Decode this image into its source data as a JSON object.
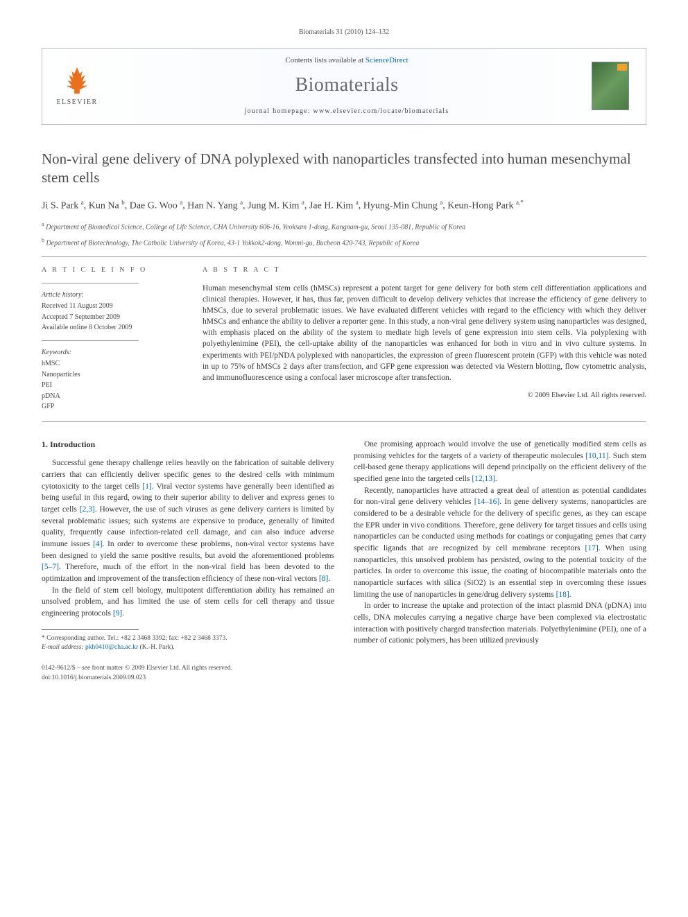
{
  "running_header": "Biomaterials 31 (2010) 124–132",
  "masthead": {
    "contents_prefix": "Contents lists available at ",
    "sciencedirect": "ScienceDirect",
    "journal": "Biomaterials",
    "homepage_prefix": "journal homepage: ",
    "homepage_url": "www.elsevier.com/locate/biomaterials",
    "elsevier_label": "ELSEVIER",
    "cover_label": "Biomaterials"
  },
  "title": "Non-viral gene delivery of DNA polyplexed with nanoparticles transfected into human mesenchymal stem cells",
  "authors_html": "Ji S. Park <sup>a</sup>, Kun Na <sup>b</sup>, Dae G. Woo <sup>a</sup>, Han N. Yang <sup>a</sup>, Jung M. Kim <sup>a</sup>, Jae H. Kim <sup>a</sup>, Hyung-Min Chung <sup>a</sup>, Keun-Hong Park <sup>a,*</sup>",
  "affiliations": {
    "a": "Department of Biomedical Science, College of Life Science, CHA University 606-16, Yeoksam 1-dong, Kangnam-gu, Seoul 135-081, Republic of Korea",
    "b": "Department of Biotechnology, The Catholic University of Korea, 43-1 Yokkok2-dong, Wonmi-gu, Bucheon 420-743, Republic of Korea"
  },
  "article_info": {
    "heading": "A R T I C L E   I N F O",
    "history_label": "Article history:",
    "received": "Received 11 August 2009",
    "accepted": "Accepted 7 September 2009",
    "online": "Available online 8 October 2009",
    "keywords_label": "Keywords:",
    "keywords": [
      "hMSC",
      "Nanoparticles",
      "PEI",
      "pDNA",
      "GFP"
    ]
  },
  "abstract": {
    "heading": "A B S T R A C T",
    "text": "Human mesenchymal stem cells (hMSCs) represent a potent target for gene delivery for both stem cell differentiation applications and clinical therapies. However, it has, thus far, proven difficult to develop delivery vehicles that increase the efficiency of gene delivery to hMSCs, due to several problematic issues. We have evaluated different vehicles with regard to the efficiency with which they deliver hMSCs and enhance the ability to deliver a reporter gene. In this study, a non-viral gene delivery system using nanoparticles was designed, with emphasis placed on the ability of the system to mediate high levels of gene expression into stem cells. Via polyplexing with polyethylenimine (PEI), the cell-uptake ability of the nanoparticles was enhanced for both in vitro and in vivo culture systems. In experiments with PEI/pNDA polyplexed with nanoparticles, the expression of green fluorescent protein (GFP) with this vehicle was noted in up to 75% of hMSCs 2 days after transfection, and GFP gene expression was detected via Western blotting, flow cytometric analysis, and immunofluorescence using a confocal laser microscope after transfection.",
    "copyright": "© 2009 Elsevier Ltd. All rights reserved."
  },
  "body": {
    "section1_heading": "1. Introduction",
    "p1": "Successful gene therapy challenge relies heavily on the fabrication of suitable delivery carriers that can efficiently deliver specific genes to the desired cells with minimum cytotoxicity to the target cells [1]. Viral vector systems have generally been identified as being useful in this regard, owing to their superior ability to deliver and express genes to target cells [2,3]. However, the use of such viruses as gene delivery carriers is limited by several problematic issues; such systems are expensive to produce, generally of limited quality, frequently cause infection-related cell damage, and can also induce adverse immune issues [4]. In order to overcome these problems, non-viral vector systems have been designed to yield the same positive results, but avoid the aforementioned problems [5–7]. Therefore, much of the effort in the non-viral field has been devoted to the optimization and improvement of the transfection efficiency of these non-viral vectors [8].",
    "p2": "In the field of stem cell biology, multipotent differentiation ability has remained an unsolved problem, and has limited the use of stem cells for cell therapy and tissue engineering protocols [9].",
    "p3": "One promising approach would involve the use of genetically modified stem cells as promising vehicles for the targets of a variety of therapeutic molecules [10,11]. Such stem cell-based gene therapy applications will depend principally on the efficient delivery of the specified gene into the targeted cells [12,13].",
    "p4": "Recently, nanoparticles have attracted a great deal of attention as potential candidates for non-viral gene delivery vehicles [14–16]. In gene delivery systems, nanoparticles are considered to be a desirable vehicle for the delivery of specific genes, as they can escape the EPR under in vivo conditions. Therefore, gene delivery for target tissues and cells using nanoparticles can be conducted using methods for coatings or conjugating genes that carry specific ligands that are recognized by cell membrane receptors [17]. When using nanoparticles, this unsolved problem has persisted, owing to the potential toxicity of the particles. In order to overcome this issue, the coating of biocompatible materials onto the nanoparticle surfaces with silica (SiO2) is an essential step in overcoming these issues limiting the use of nanoparticles in gene/drug delivery systems [18].",
    "p5": "In order to increase the uptake and protection of the intact plasmid DNA (pDNA) into cells, DNA molecules carrying a negative charge have been complexed via electrostatic interaction with positively charged transfection materials. Polyethylenimine (PEI), one of a number of cationic polymers, has been utilized previously"
  },
  "footnote": {
    "corr_label": "* Corresponding author. Tel.: +82 2 3468 3392; fax: +82 2 3468 3373.",
    "email_label": "E-mail address:",
    "email": "pkh0410@cha.ac.kr",
    "email_who": "(K.-H. Park)."
  },
  "footer": {
    "left1": "0142-9612/$ – see front matter © 2009 Elsevier Ltd. All rights reserved.",
    "left2": "doi:10.1016/j.biomaterials.2009.09.023"
  }
}
